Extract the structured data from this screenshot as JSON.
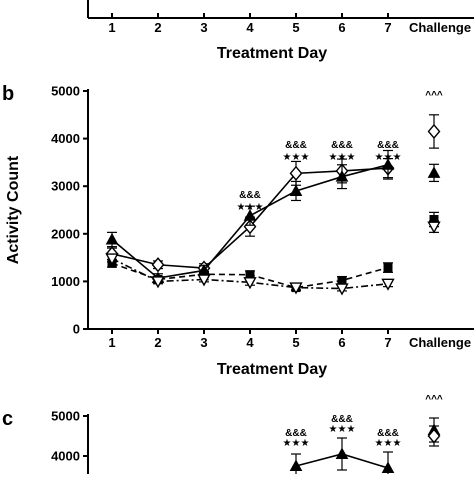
{
  "panel_letters": {
    "b": "b",
    "c": "c"
  },
  "top_partial": {
    "x_ticks": [
      "1",
      "2",
      "3",
      "4",
      "5",
      "6",
      "7"
    ],
    "challenge_label": "Challenge",
    "xlabel": "Treatment Day"
  },
  "chart_data": [
    {
      "type": "line",
      "panel": "b",
      "title": "",
      "xlabel": "Treatment Day",
      "ylabel": "Activity Count",
      "x": [
        1,
        2,
        3,
        4,
        5,
        6,
        7
      ],
      "x_tick_labels": [
        "1",
        "2",
        "3",
        "4",
        "5",
        "6",
        "7"
      ],
      "extra_category": "Challenge",
      "ylim": [
        0,
        5000
      ],
      "y_ticks": [
        0,
        1000,
        2000,
        3000,
        4000,
        5000
      ],
      "y_tick_labels": [
        "0",
        "1000",
        "2000",
        "3000",
        "4000",
        "5000"
      ],
      "grid": false,
      "legend": "none",
      "series": [
        {
          "marker": "open-diamond",
          "line_style": "solid",
          "values": [
            1580,
            1350,
            1280,
            2150,
            3270,
            3320,
            3380
          ],
          "errors": [
            120,
            80,
            90,
            200,
            250,
            250,
            200
          ],
          "challenge": 4150,
          "challenge_error": 350
        },
        {
          "marker": "filled-triangle",
          "line_style": "solid",
          "values": [
            1880,
            1070,
            1230,
            2380,
            2900,
            3200,
            3450
          ],
          "errors": [
            150,
            90,
            100,
            200,
            200,
            250,
            300
          ],
          "challenge": 3280,
          "challenge_error": 180
        },
        {
          "marker": "filled-square",
          "line_style": "dashed",
          "values": [
            1380,
            1040,
            1150,
            1140,
            870,
            1020,
            1290
          ],
          "errors": [
            80,
            60,
            60,
            80,
            60,
            80,
            100
          ],
          "challenge": 2300,
          "challenge_error": 150
        },
        {
          "marker": "open-triangle-down",
          "line_style": "dashdot",
          "values": [
            1480,
            1000,
            1040,
            980,
            870,
            850,
            950
          ],
          "errors": [
            70,
            50,
            50,
            60,
            50,
            50,
            60
          ],
          "challenge": 2150,
          "challenge_error": 120
        }
      ],
      "annotations": [
        {
          "x": 4,
          "y": 2750,
          "text": "&&&"
        },
        {
          "x": 4,
          "y": 2500,
          "text": "★★★"
        },
        {
          "x": 5,
          "y": 3800,
          "text": "&&&"
        },
        {
          "x": 5,
          "y": 3550,
          "text": "★★★"
        },
        {
          "x": 6,
          "y": 3800,
          "text": "&&&"
        },
        {
          "x": 6,
          "y": 3550,
          "text": "★★★"
        },
        {
          "x": 7,
          "y": 3800,
          "text": "&&&"
        },
        {
          "x": 7,
          "y": 3550,
          "text": "★★★"
        },
        {
          "x": "Challenge",
          "y": 4850,
          "text": "^^^"
        }
      ]
    },
    {
      "type": "line",
      "panel": "c",
      "title": "",
      "ylabel": "",
      "y_ticks": [
        4000,
        5000
      ],
      "y_tick_labels": [
        "4000",
        "5000"
      ],
      "ylim": [
        0,
        5000
      ],
      "x": [
        1,
        2,
        3,
        4,
        5,
        6,
        7
      ],
      "series": [
        {
          "marker": "filled-triangle",
          "line_style": "solid",
          "values": [
            null,
            null,
            null,
            null,
            3750,
            4050,
            3700
          ],
          "errors": [
            null,
            null,
            null,
            null,
            300,
            400,
            400
          ],
          "challenge": 4650,
          "challenge_error": 300
        },
        {
          "marker": "open-diamond",
          "line_style": "solid",
          "values": [
            null,
            null,
            null,
            null,
            null,
            null,
            null
          ],
          "challenge": 4500,
          "challenge_error": 250
        }
      ],
      "annotations": [
        {
          "x": 5,
          "y": 4500,
          "text": "&&&"
        },
        {
          "x": 5,
          "y": 4250,
          "text": "★★★"
        },
        {
          "x": 6,
          "y": 4850,
          "text": "&&&"
        },
        {
          "x": 6,
          "y": 4600,
          "text": "★★★"
        },
        {
          "x": 7,
          "y": 4500,
          "text": "&&&"
        },
        {
          "x": 7,
          "y": 4250,
          "text": "★★★"
        },
        {
          "x": "Challenge",
          "y": 5350,
          "text": "^^^"
        }
      ]
    }
  ]
}
